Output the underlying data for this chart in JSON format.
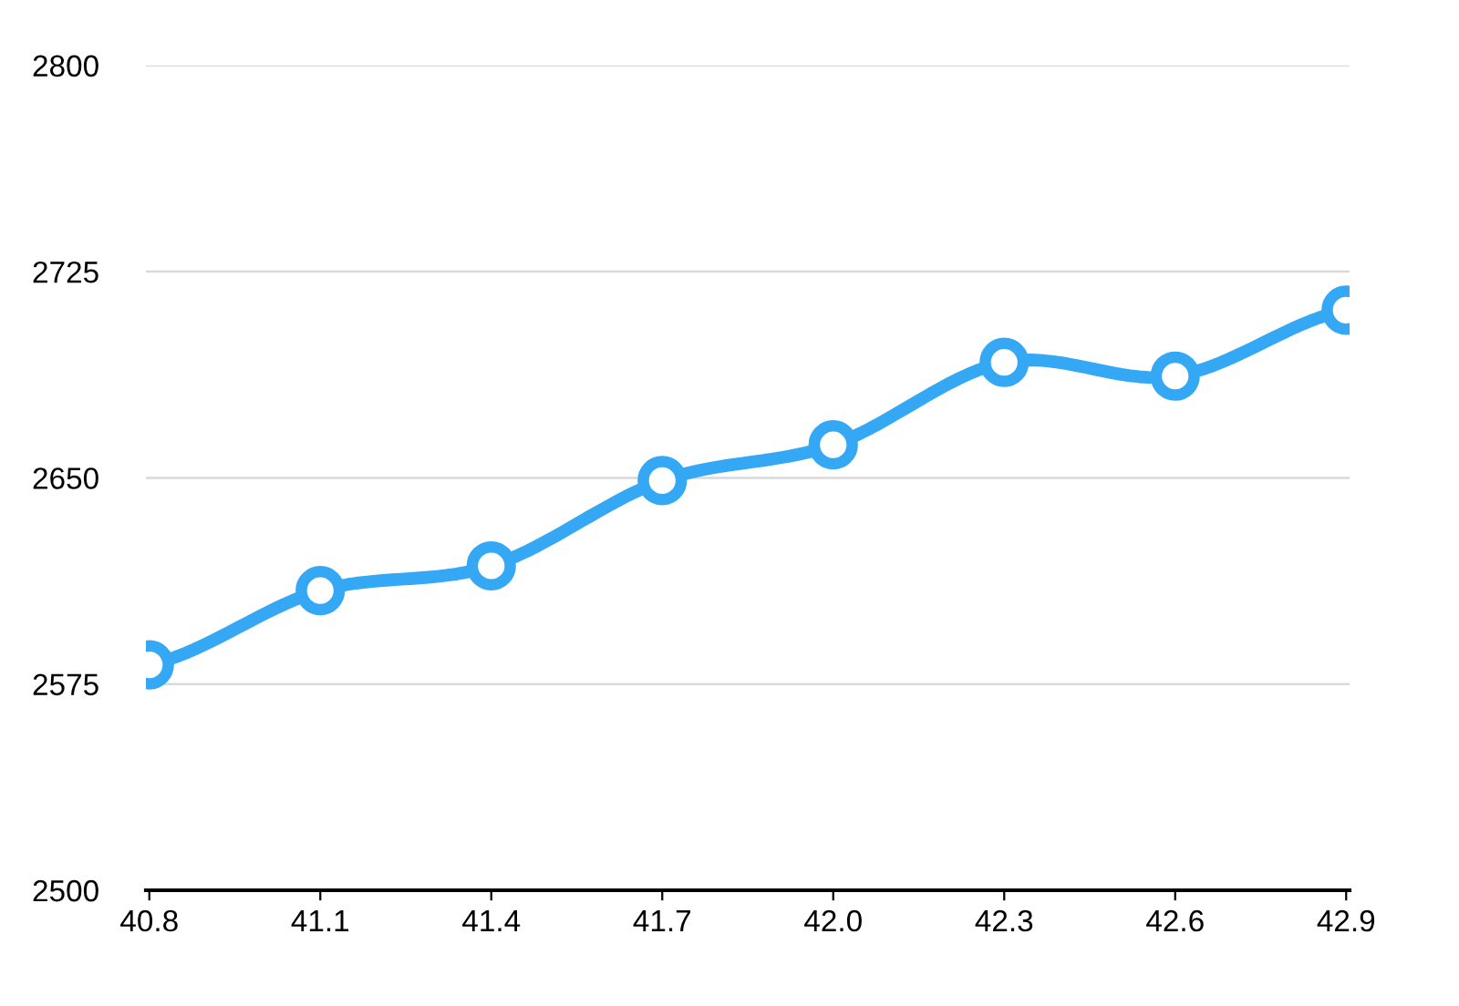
{
  "chart_data": {
    "type": "line",
    "categories": [
      "40.8",
      "41.1",
      "41.4",
      "41.7",
      "42.0",
      "42.3",
      "42.6",
      "42.9"
    ],
    "series": [
      {
        "color": "#35a8f5",
        "values": [
          2582,
          2609,
          2618,
          2649,
          2662,
          2692,
          2687,
          2711
        ]
      }
    ],
    "ylim": [
      2500,
      2800
    ],
    "yticks": [
      2500,
      2575,
      2650,
      2725,
      2800
    ],
    "grid": "y",
    "marker": "circle",
    "line_style": "solid"
  }
}
